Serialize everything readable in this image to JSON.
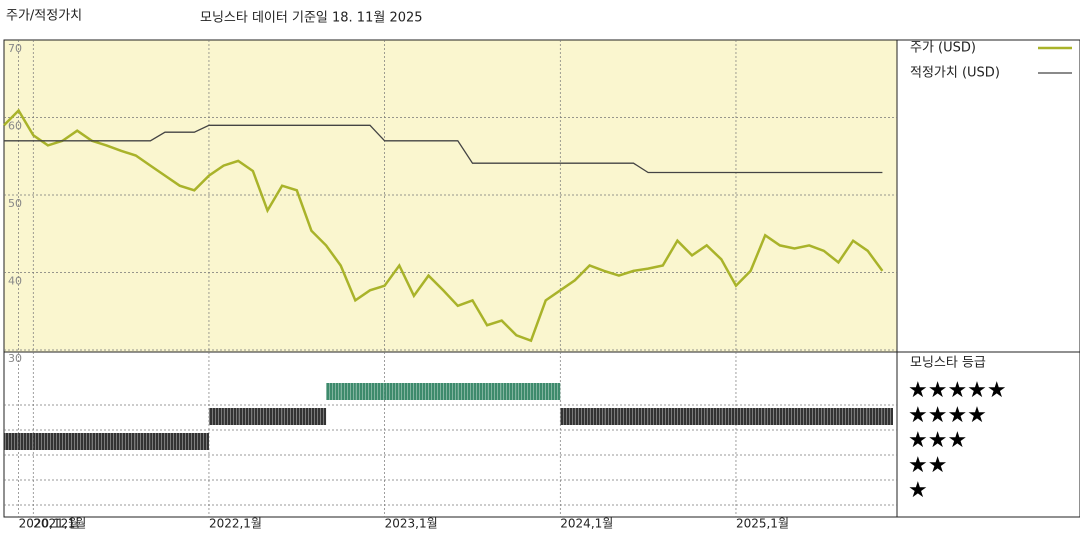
{
  "chart_data": [
    {
      "type": "line",
      "title": "주가/적정가치",
      "subtitle": "모닝스타 데이터 기준일 18. 11월 2025",
      "x": [
        "2020-11",
        "2020-12",
        "2021-01",
        "2021-02",
        "2021-03",
        "2021-04",
        "2021-05",
        "2021-06",
        "2021-07",
        "2021-08",
        "2021-09",
        "2021-10",
        "2021-11",
        "2021-12",
        "2022-01",
        "2022-02",
        "2022-03",
        "2022-04",
        "2022-05",
        "2022-06",
        "2022-07",
        "2022-08",
        "2022-09",
        "2022-10",
        "2022-11",
        "2022-12",
        "2023-01",
        "2023-02",
        "2023-03",
        "2023-04",
        "2023-05",
        "2023-06",
        "2023-07",
        "2023-08",
        "2023-09",
        "2023-10",
        "2023-11",
        "2023-12",
        "2024-01",
        "2024-02",
        "2024-03",
        "2024-04",
        "2024-05",
        "2024-06",
        "2024-07",
        "2024-08",
        "2024-09",
        "2024-10",
        "2024-11",
        "2024-12",
        "2025-01",
        "2025-02",
        "2025-03",
        "2025-04",
        "2025-05",
        "2025-06",
        "2025-07",
        "2025-08",
        "2025-09",
        "2025-10",
        "2025-11"
      ],
      "series": [
        {
          "name": "주가 (USD)",
          "color": "#a9b32a",
          "values": [
            59,
            60.9,
            57.7,
            56.4,
            57,
            58.3,
            57,
            56.4,
            55.7,
            55.1,
            53.8,
            52.5,
            51.2,
            50.6,
            52.5,
            53.8,
            54.4,
            53.1,
            48,
            51.2,
            50.6,
            45.4,
            43.5,
            40.9,
            36.4,
            37.7,
            38.3,
            40.9,
            37,
            39.6,
            37.7,
            35.7,
            36.4,
            33.2,
            33.8,
            31.9,
            31.2,
            36.4,
            37.7,
            39,
            40.9,
            40.2,
            39.6,
            40.2,
            40.5,
            40.9,
            44.1,
            42.2,
            43.5,
            41.7,
            38.3,
            40.2,
            44.8,
            43.5,
            43.1,
            43.5,
            42.8,
            41.3,
            44.1,
            42.8,
            40.2
          ]
        },
        {
          "name": "적정가치 (USD)",
          "color": "#444444",
          "values": [
            57,
            57,
            57,
            57,
            57,
            57,
            57,
            57,
            57,
            57,
            57,
            58.1,
            58.1,
            58.1,
            59,
            59,
            59,
            59,
            59,
            59,
            59,
            59,
            59,
            59,
            59,
            59,
            57,
            57,
            57,
            57,
            57,
            57,
            54.1,
            54.1,
            54.1,
            54.1,
            54.1,
            54.1,
            54.1,
            54.1,
            54.1,
            54.1,
            54.1,
            54.1,
            52.9,
            52.9,
            52.9,
            52.9,
            52.9,
            52.9,
            52.9,
            52.9,
            52.9,
            52.9,
            52.9,
            52.9,
            52.9,
            52.9,
            52.9,
            52.9,
            52.9
          ]
        }
      ],
      "xlim": [
        "2020-11",
        "2025-12"
      ],
      "xticks": [
        {
          "value": "2020-12",
          "label": "2020,12월"
        },
        {
          "value": "2021-01",
          "label": "2021,1월"
        },
        {
          "value": "2022-01",
          "label": "2022,1월"
        },
        {
          "value": "2023-01",
          "label": "2023,1월"
        },
        {
          "value": "2024-01",
          "label": "2024,1월"
        },
        {
          "value": "2025-01",
          "label": "2025,1월"
        }
      ],
      "ylim": [
        30,
        70
      ],
      "yticks": [
        30,
        40,
        50,
        60,
        70
      ],
      "grid": true
    },
    {
      "type": "rating",
      "title": "모닝스타 등급",
      "levels": [
        5,
        4,
        3,
        2,
        1
      ],
      "level_labels": [
        "★★★★★",
        "★★★★",
        "★★★",
        "★★",
        "★"
      ],
      "colors": {
        "5": "#3d8a6c",
        "other": "#333333"
      },
      "values": [
        3,
        3,
        3,
        3,
        3,
        3,
        3,
        3,
        3,
        3,
        3,
        3,
        3,
        3,
        4,
        4,
        4,
        4,
        4,
        4,
        4,
        4,
        5,
        5,
        5,
        5,
        5,
        5,
        5,
        5,
        5,
        5,
        5,
        5,
        5,
        5,
        5,
        5,
        4,
        4,
        4,
        4,
        4,
        4,
        4,
        4,
        4,
        4,
        4,
        4,
        4,
        4,
        4,
        4,
        4,
        4,
        4,
        4,
        4,
        4,
        4
      ]
    }
  ]
}
